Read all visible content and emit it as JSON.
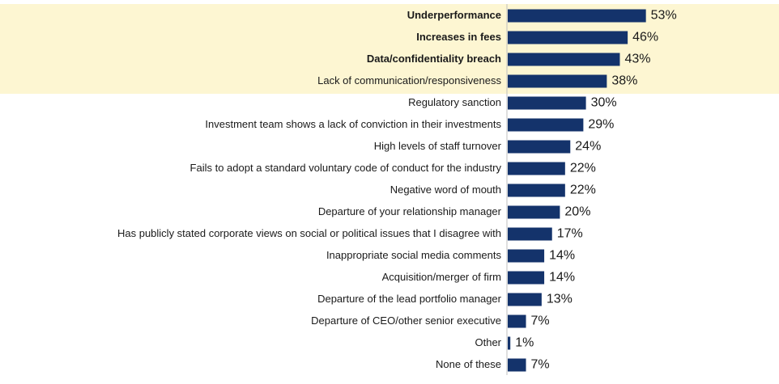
{
  "chart_data": {
    "type": "bar",
    "orientation": "horizontal",
    "categories": [
      "Underperformance",
      "Increases in fees",
      "Data/confidentiality breach",
      "Lack of communication/responsiveness",
      "Regulatory sanction",
      "Investment team shows a lack of conviction in their investments",
      "High levels of staff turnover",
      "Fails to adopt a standard voluntary code of conduct for the industry",
      "Negative word of mouth",
      "Departure of your relationship manager",
      "Has publicly stated corporate views on social or political issues that I disagree with",
      "Inappropriate social media comments",
      "Acquisition/merger of firm",
      "Departure of the lead portfolio manager",
      "Departure of CEO/other senior executive",
      "Other",
      "None of these"
    ],
    "values": [
      53,
      46,
      43,
      38,
      30,
      29,
      24,
      22,
      22,
      20,
      17,
      14,
      14,
      13,
      7,
      1,
      7
    ],
    "value_labels": [
      "53%",
      "46%",
      "43%",
      "38%",
      "30%",
      "29%",
      "24%",
      "22%",
      "22%",
      "20%",
      "17%",
      "14%",
      "14%",
      "13%",
      "7%",
      "1%",
      "7%"
    ],
    "bold_categories": [
      0,
      1,
      2
    ],
    "highlighted_rows": [
      0,
      1,
      2,
      3
    ],
    "unit": "%",
    "xlim": [
      0,
      53
    ],
    "grid": false,
    "legend": "none",
    "bar_color": "#14336b",
    "highlight_color": "#fdf6d2"
  }
}
